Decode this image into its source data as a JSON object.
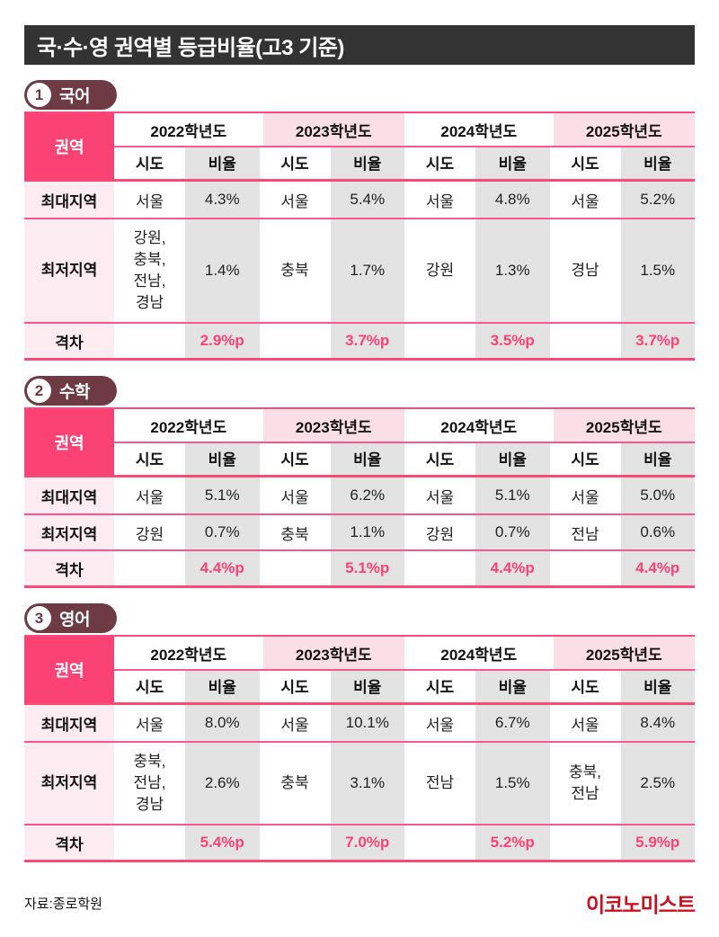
{
  "title": "국·수·영 권역별 등급비율(고3 기준)",
  "footer": {
    "source": "자료:종로학원",
    "logo": "이코노미스트"
  },
  "colors": {
    "accent_pink": "#FA4374",
    "light_pink_header": "#FBDFE7",
    "row_label_pink": "#FDECF1",
    "ratio_gray": "#E3E3E3",
    "badge_maroon": "#6E3B44",
    "title_bar": "#333333",
    "logo_red": "#CB1021"
  },
  "chart_data": {
    "type": "table",
    "title": "국·수·영 권역별 등급비율(고3 기준)",
    "columns": {
      "region": "권역",
      "years": [
        "2022학년도",
        "2023학년도",
        "2024학년도",
        "2025학년도"
      ],
      "sido": "시도",
      "ratio": "비율"
    },
    "row_labels": {
      "max": "최대지역",
      "min": "최저지역",
      "gap": "격차"
    },
    "tables": [
      {
        "number": "1",
        "subject": "국어",
        "max": {
          "sido": [
            "서울",
            "서울",
            "서울",
            "서울"
          ],
          "ratio": [
            "4.3%",
            "5.4%",
            "4.8%",
            "5.2%"
          ]
        },
        "min": {
          "sido": [
            "강원,\n충북,\n전남,\n경남",
            "충북",
            "강원",
            "경남"
          ],
          "ratio": [
            "1.4%",
            "1.7%",
            "1.3%",
            "1.5%"
          ]
        },
        "gap": {
          "ratio": [
            "2.9%p",
            "3.7%p",
            "3.5%p",
            "3.7%p"
          ]
        }
      },
      {
        "number": "2",
        "subject": "수학",
        "max": {
          "sido": [
            "서울",
            "서울",
            "서울",
            "서울"
          ],
          "ratio": [
            "5.1%",
            "6.2%",
            "5.1%",
            "5.0%"
          ]
        },
        "min": {
          "sido": [
            "강원",
            "충북",
            "강원",
            "전남"
          ],
          "ratio": [
            "0.7%",
            "1.1%",
            "0.7%",
            "0.6%"
          ]
        },
        "gap": {
          "ratio": [
            "4.4%p",
            "5.1%p",
            "4.4%p",
            "4.4%p"
          ]
        }
      },
      {
        "number": "3",
        "subject": "영어",
        "max": {
          "sido": [
            "서울",
            "서울",
            "서울",
            "서울"
          ],
          "ratio": [
            "8.0%",
            "10.1%",
            "6.7%",
            "8.4%"
          ]
        },
        "min": {
          "sido": [
            "충북,\n전남,\n경남",
            "충북",
            "전남",
            "충북,\n전남"
          ],
          "ratio": [
            "2.6%",
            "3.1%",
            "1.5%",
            "2.5%"
          ]
        },
        "gap": {
          "ratio": [
            "5.4%p",
            "7.0%p",
            "5.2%p",
            "5.9%p"
          ]
        }
      }
    ]
  }
}
